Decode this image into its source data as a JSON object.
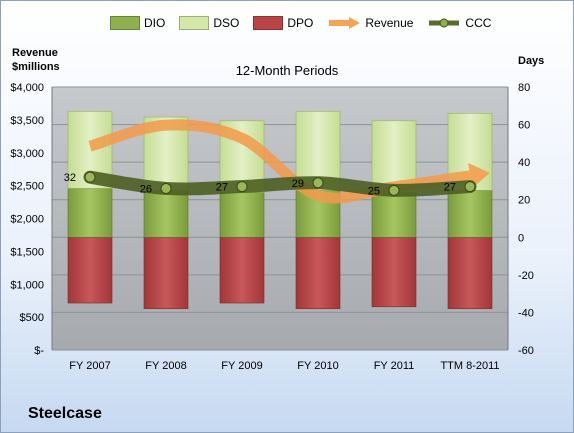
{
  "company": "Steelcase",
  "legend": [
    {
      "key": "dio",
      "label": "DIO",
      "color": "#8fb04e",
      "kind": "bar"
    },
    {
      "key": "dso",
      "label": "DSO",
      "color": "#d4e8a8",
      "kind": "bar"
    },
    {
      "key": "dpo",
      "label": "DPO",
      "color": "#b84446",
      "kind": "bar"
    },
    {
      "key": "revenue",
      "label": "Revenue",
      "color": "#f4a456",
      "kind": "arrow"
    },
    {
      "key": "ccc",
      "label": "CCC",
      "color": "#5a6e2a",
      "kind": "line"
    }
  ],
  "chart_data": {
    "type": "bar",
    "title": "12-Month Periods",
    "left_axis_title": "Revenue\n$millions",
    "right_axis_title": "Days",
    "categories": [
      "FY 2007",
      "FY 2008",
      "FY 2009",
      "FY 2010",
      "FY 2011",
      "TTM 8-2011"
    ],
    "left_axis": {
      "min": 0,
      "max": 4000,
      "ticks": [
        "$-",
        "$500",
        "$1,000",
        "$1,500",
        "$2,000",
        "$2,500",
        "$3,000",
        "$3,500",
        "$4,000"
      ]
    },
    "right_axis": {
      "min": -60,
      "max": 80,
      "ticks": [
        "-60",
        "-40",
        "-20",
        "0",
        "20",
        "40",
        "60",
        "80"
      ]
    },
    "series": [
      {
        "name": "DPO",
        "unit": "days",
        "values": [
          -35,
          -38,
          -35,
          -38,
          -37,
          -38
        ]
      },
      {
        "name": "DIO",
        "unit": "days",
        "values": [
          26,
          25,
          24,
          25,
          24,
          25
        ]
      },
      {
        "name": "DSO",
        "unit": "days",
        "values": [
          41,
          39,
          38,
          42,
          38,
          41
        ]
      },
      {
        "name": "Revenue",
        "unit": "$millions",
        "values": [
          3100,
          3420,
          3220,
          2350,
          2480,
          2650
        ]
      },
      {
        "name": "CCC",
        "unit": "days",
        "values": [
          32,
          26,
          27,
          29,
          25,
          27
        ]
      }
    ],
    "ccc_labels": [
      "32",
      "26",
      "27",
      "29",
      "25",
      "27"
    ],
    "grid": true
  }
}
